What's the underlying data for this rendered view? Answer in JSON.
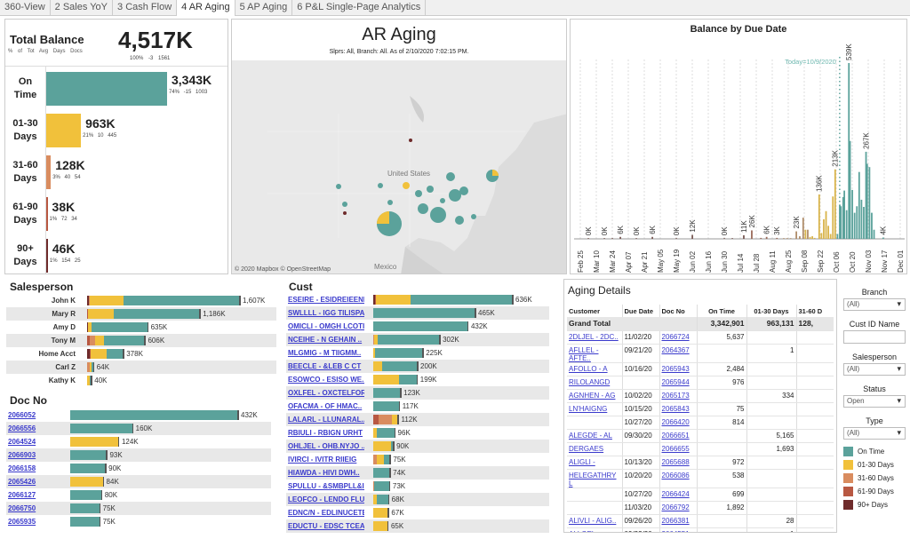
{
  "tabs": [
    "360-View",
    "2 Sales YoY",
    "3 Cash Flow",
    "4 AR Aging",
    "5 AP Aging",
    "6 P&L Single-Page Analytics"
  ],
  "active_tab": 3,
  "colors": {
    "on_time": "#5ba29b",
    "d01_30": "#f1c13b",
    "d31_60": "#d98c5f",
    "d61_90": "#b85842",
    "d90p": "#6e2b2b",
    "link": "#3a3acc"
  },
  "kpi": {
    "title": "Total Balance",
    "sub": "% of Tot Avg Days Docs",
    "total": "4,517K",
    "total_stats": "100% -3 1561",
    "rows": [
      {
        "label1": "On",
        "label2": "Time",
        "value": 3343,
        "value_label": "3,343K",
        "stats": "74% -15 1003",
        "color": "#5ba29b"
      },
      {
        "label1": "01-30",
        "label2": "Days",
        "value": 963,
        "value_label": "963K",
        "stats": "21% 10 445",
        "color": "#f1c13b"
      },
      {
        "label1": "31-60",
        "label2": "Days",
        "value": 128,
        "value_label": "128K",
        "stats": "3% 40 54",
        "color": "#d98c5f"
      },
      {
        "label1": "61-90",
        "label2": "Days",
        "value": 38,
        "value_label": "38K",
        "stats": "1% 72 34",
        "color": "#b85842"
      },
      {
        "label1": "90+",
        "label2": "Days",
        "value": 46,
        "value_label": "46K",
        "stats": "1% 154 25",
        "color": "#6e2b2b"
      }
    ]
  },
  "map": {
    "title": "AR Aging",
    "subtitle": "Slprs: All, Branch: All. As of  2/10/2020 7:02:15 PM.",
    "label_us": "United States",
    "label_mx": "Mexico",
    "attribution": "© 2020 Mapbox © OpenStreetMap"
  },
  "chart_data": {
    "type": "bar",
    "title": "Balance by Due Date",
    "annotation": "Today=10/9/2020",
    "today_day": 227,
    "x_start": "Feb 25",
    "ylim": [
      0,
      560
    ],
    "unit": "K",
    "tick_labels": [
      "Feb 25",
      "Mar 10",
      "Mar 24",
      "Apr 07",
      "Apr 21",
      "May 05",
      "May 19",
      "Jun 02",
      "Jun 16",
      "Jun 30",
      "Jul 14",
      "Jul 28",
      "Aug 11",
      "Aug 25",
      "Sep 08",
      "Sep 22",
      "Oct 06",
      "Oct 20",
      "Nov 03",
      "Nov 17",
      "Dec 01"
    ],
    "tick_step_days": 14,
    "bars": [
      {
        "day": 7,
        "value": 0.3,
        "label": "0K",
        "cat": "d90p"
      },
      {
        "day": 21,
        "value": 0.3,
        "label": "0K",
        "cat": "d90p"
      },
      {
        "day": 28,
        "value": 1,
        "cat": "d90p"
      },
      {
        "day": 35,
        "value": 6,
        "label": "6K",
        "cat": "d90p"
      },
      {
        "day": 49,
        "value": 0.3,
        "label": "0K",
        "cat": "d90p"
      },
      {
        "day": 63,
        "value": 6,
        "label": "6K",
        "cat": "d90p"
      },
      {
        "day": 84,
        "value": 0.3,
        "label": "0K",
        "cat": "d90p"
      },
      {
        "day": 98,
        "value": 12,
        "label": "12K",
        "cat": "d90p"
      },
      {
        "day": 126,
        "value": 0.3,
        "label": "0K",
        "cat": "d90p"
      },
      {
        "day": 133,
        "value": 2,
        "cat": "d90p"
      },
      {
        "day": 143,
        "value": 11,
        "label": "11K",
        "cat": "d90p"
      },
      {
        "day": 150,
        "value": 26,
        "label": "26K",
        "cat": "d90"
      },
      {
        "day": 158,
        "value": 3,
        "cat": "d90"
      },
      {
        "day": 163,
        "value": 6,
        "label": "6K",
        "cat": "d90"
      },
      {
        "day": 172,
        "value": 3,
        "label": "3K",
        "cat": "d90"
      },
      {
        "day": 178,
        "value": 1,
        "cat": "d60"
      },
      {
        "day": 181,
        "value": 1,
        "cat": "d60"
      },
      {
        "day": 184,
        "value": 1,
        "cat": "d60"
      },
      {
        "day": 189,
        "value": 23,
        "label": "23K",
        "cat": "d60"
      },
      {
        "day": 192,
        "value": 8,
        "cat": "d60"
      },
      {
        "day": 195,
        "value": 65,
        "cat": "d60"
      },
      {
        "day": 197,
        "value": 28,
        "cat": "d30"
      },
      {
        "day": 199,
        "value": 28,
        "cat": "d60"
      },
      {
        "day": 201,
        "value": 6,
        "cat": "d30"
      },
      {
        "day": 203,
        "value": 8,
        "cat": "d30"
      },
      {
        "day": 205,
        "value": 3,
        "cat": "d30"
      },
      {
        "day": 209,
        "value": 136,
        "label": "136K",
        "cat": "d30"
      },
      {
        "day": 211,
        "value": 18,
        "cat": "d30"
      },
      {
        "day": 213,
        "value": 60,
        "cat": "d30"
      },
      {
        "day": 215,
        "value": 85,
        "cat": "d30"
      },
      {
        "day": 217,
        "value": 40,
        "cat": "d30"
      },
      {
        "day": 219,
        "value": 15,
        "cat": "d30"
      },
      {
        "day": 221,
        "value": 130,
        "cat": "d30"
      },
      {
        "day": 223,
        "value": 213,
        "label": "213K",
        "cat": "d30"
      },
      {
        "day": 225,
        "value": 15,
        "cat": "on_time"
      },
      {
        "day": 227,
        "value": 105,
        "cat": "on_time"
      },
      {
        "day": 228,
        "value": 100,
        "cat": "on_time"
      },
      {
        "day": 230,
        "value": 128,
        "cat": "on_time"
      },
      {
        "day": 231,
        "value": 148,
        "cat": "on_time"
      },
      {
        "day": 233,
        "value": 88,
        "cat": "on_time"
      },
      {
        "day": 235,
        "value": 539,
        "label": "539K",
        "cat": "on_time"
      },
      {
        "day": 236,
        "value": 300,
        "cat": "on_time"
      },
      {
        "day": 238,
        "value": 150,
        "cat": "on_time"
      },
      {
        "day": 240,
        "value": 80,
        "cat": "on_time"
      },
      {
        "day": 242,
        "value": 100,
        "cat": "on_time"
      },
      {
        "day": 244,
        "value": 205,
        "cat": "on_time"
      },
      {
        "day": 246,
        "value": 120,
        "cat": "on_time"
      },
      {
        "day": 248,
        "value": 98,
        "cat": "on_time"
      },
      {
        "day": 250,
        "value": 267,
        "label": "267K",
        "cat": "on_time"
      },
      {
        "day": 251,
        "value": 230,
        "cat": "on_time"
      },
      {
        "day": 253,
        "value": 220,
        "cat": "on_time"
      },
      {
        "day": 255,
        "value": 80,
        "cat": "on_time"
      },
      {
        "day": 257,
        "value": 28,
        "cat": "on_time"
      },
      {
        "day": 265,
        "value": 4,
        "label": "4K",
        "cat": "on_time"
      }
    ]
  },
  "salesperson": {
    "title": "Salesperson",
    "max": 1607,
    "rows": [
      {
        "name": "John K",
        "label": "1,607K",
        "segs": [
          20,
          0,
          5,
          360,
          1222
        ]
      },
      {
        "name": "Mary R",
        "label": "1,186K",
        "segs": [
          0,
          5,
          5,
          270,
          906
        ]
      },
      {
        "name": "Amy D",
        "label": "635K",
        "segs": [
          5,
          0,
          0,
          40,
          590
        ]
      },
      {
        "name": "Tony M",
        "label": "606K",
        "segs": [
          0,
          30,
          50,
          100,
          426
        ]
      },
      {
        "name": "Home Acct",
        "label": "378K",
        "segs": [
          25,
          8,
          0,
          170,
          175
        ]
      },
      {
        "name": "Carl Z",
        "label": "64K",
        "segs": [
          0,
          0,
          25,
          25,
          14
        ]
      },
      {
        "name": "Kathy K",
        "label": "40K",
        "segs": [
          0,
          0,
          0,
          25,
          15
        ]
      }
    ]
  },
  "docno": {
    "title": "Doc No",
    "max": 432,
    "rows": [
      {
        "name": "2066052",
        "label": "432K",
        "segs": [
          0,
          0,
          0,
          0,
          432
        ]
      },
      {
        "name": "2066556",
        "label": "160K",
        "segs": [
          0,
          0,
          0,
          0,
          160
        ]
      },
      {
        "name": "2064524",
        "label": "124K",
        "segs": [
          0,
          0,
          0,
          124,
          0
        ]
      },
      {
        "name": "2066903",
        "label": "93K",
        "segs": [
          0,
          0,
          0,
          0,
          93
        ]
      },
      {
        "name": "2066158",
        "label": "90K",
        "segs": [
          0,
          0,
          0,
          0,
          90
        ]
      },
      {
        "name": "2065426",
        "label": "84K",
        "segs": [
          0,
          0,
          0,
          84,
          0
        ]
      },
      {
        "name": "2066127",
        "label": "80K",
        "segs": [
          0,
          0,
          0,
          0,
          80
        ]
      },
      {
        "name": "2066750",
        "label": "75K",
        "segs": [
          0,
          0,
          0,
          0,
          75
        ]
      },
      {
        "name": "2065935",
        "label": "75K",
        "segs": [
          0,
          0,
          0,
          0,
          75
        ]
      }
    ]
  },
  "cust": {
    "title": "Cust",
    "max": 636,
    "rows": [
      {
        "name": "ESEIRE - ESIDREIEENL",
        "label": "636K",
        "segs": [
          8,
          4,
          0,
          160,
          464
        ]
      },
      {
        "name": "SWLLLL - IGG TILISPAL",
        "label": "465K",
        "segs": [
          0,
          0,
          0,
          0,
          465
        ]
      },
      {
        "name": "OMICLI - OMGH LCOTI",
        "label": "432K",
        "segs": [
          0,
          0,
          0,
          0,
          432
        ]
      },
      {
        "name": "NCEIHE - N GEHAIN ..",
        "label": "302K",
        "segs": [
          0,
          0,
          5,
          17,
          280
        ]
      },
      {
        "name": "MLGMIG - M TIIGMM..",
        "label": "225K",
        "segs": [
          0,
          0,
          0,
          10,
          215
        ]
      },
      {
        "name": "BEECLE - &LEB C CT",
        "label": "200K",
        "segs": [
          0,
          0,
          0,
          40,
          160
        ]
      },
      {
        "name": "ESOWCO - ESISO WE..",
        "label": "199K",
        "segs": [
          0,
          0,
          0,
          120,
          79
        ]
      },
      {
        "name": "OXLFEL - OXCTELFORI",
        "label": "123K",
        "segs": [
          0,
          0,
          0,
          0,
          123
        ]
      },
      {
        "name": "OFACMA - OF HMAC..",
        "label": "117K",
        "segs": [
          0,
          0,
          0,
          0,
          117
        ]
      },
      {
        "name": "LALARL - LLUNARAL..",
        "label": "112K",
        "segs": [
          0,
          25,
          60,
          27,
          0
        ]
      },
      {
        "name": "RBIULI - RBIGN URHT",
        "label": "96K",
        "segs": [
          0,
          0,
          0,
          15,
          81
        ]
      },
      {
        "name": "OHLJEL - OHB.NYJO ..",
        "label": "90K",
        "segs": [
          0,
          0,
          0,
          82,
          8
        ]
      },
      {
        "name": "IVIRCI - IVITR RIIEIG",
        "label": "75K",
        "segs": [
          0,
          0,
          15,
          35,
          25
        ]
      },
      {
        "name": "HIAWDA - HIVI DWH..",
        "label": "74K",
        "segs": [
          0,
          0,
          0,
          0,
          74
        ]
      },
      {
        "name": "SPULLU - &SMBPLL&I..",
        "label": "73K",
        "segs": [
          0,
          0,
          3,
          0,
          70
        ]
      },
      {
        "name": "LEOFCO - LENDO FLU..",
        "label": "68K",
        "segs": [
          0,
          0,
          0,
          17,
          51
        ]
      },
      {
        "name": "EDNC/N - EDLINUCETE",
        "label": "67K",
        "segs": [
          0,
          0,
          0,
          67,
          0
        ]
      },
      {
        "name": "EDUCTU - EDSC TCEA..",
        "label": "65K",
        "segs": [
          0,
          0,
          0,
          65,
          0
        ]
      }
    ]
  },
  "aging": {
    "title": "Aging Details",
    "columns": [
      "Customer",
      "Due Date",
      "Doc No",
      "On Time",
      "01-30 Days",
      "31-60 D"
    ],
    "grand_total": {
      "label": "Grand Total",
      "on_time": "3,342,901",
      "d30": "963,131",
      "d60": "128,"
    },
    "rows": [
      {
        "cust": "2DLJEL - 2DC..",
        "due": "11/02/20",
        "doc": "2066724",
        "on_time": "5,637",
        "d30": ""
      },
      {
        "cust": "AFLLEL - AFTE..",
        "due": "09/21/20",
        "doc": "2064367",
        "on_time": "",
        "d30": "1"
      },
      {
        "cust": "AFOLLO - A",
        "due": "10/16/20",
        "doc": "2065943",
        "on_time": "2,484",
        "d30": ""
      },
      {
        "cust": "RILOLANGD",
        "due": "",
        "doc": "2065944",
        "on_time": "976",
        "d30": ""
      },
      {
        "cust": "AGNHEN - AG",
        "due": "10/02/20",
        "doc": "2065173",
        "on_time": "",
        "d30": "334"
      },
      {
        "cust": "LN'HAIGNG",
        "due": "10/15/20",
        "doc": "2065843",
        "on_time": "75",
        "d30": ""
      },
      {
        "cust": "",
        "due": "10/27/20",
        "doc": "2066420",
        "on_time": "814",
        "d30": ""
      },
      {
        "cust": "ALEGDE - AL",
        "due": "09/30/20",
        "doc": "2066651",
        "on_time": "",
        "d30": "5,165"
      },
      {
        "cust": "DERGAES",
        "due": "",
        "doc": "2066655",
        "on_time": "",
        "d30": "1,693"
      },
      {
        "cust": "ALIGLI -",
        "due": "10/13/20",
        "doc": "2065688",
        "on_time": "972",
        "d30": ""
      },
      {
        "cust": "HELEGATHRY L",
        "due": "10/20/20",
        "doc": "2066086",
        "on_time": "538",
        "d30": ""
      },
      {
        "cust": "",
        "due": "10/27/20",
        "doc": "2066424",
        "on_time": "699",
        "d30": ""
      },
      {
        "cust": "",
        "due": "11/03/20",
        "doc": "2066792",
        "on_time": "1,892",
        "d30": ""
      },
      {
        "cust": "ALIVLI - ALIG..",
        "due": "09/26/20",
        "doc": "2066381",
        "on_time": "",
        "d30": "28"
      },
      {
        "cust": "ALLGEL -",
        "due": "09/22/20",
        "doc": "2064551",
        "on_time": "",
        "d30": "1"
      }
    ]
  },
  "filters": {
    "branch": {
      "label": "Branch",
      "value": "(All)"
    },
    "cust_id": {
      "label": "Cust ID Name",
      "value": ""
    },
    "salesperson": {
      "label": "Salesperson",
      "value": "(All)"
    },
    "status": {
      "label": "Status",
      "value": "Open"
    },
    "type": {
      "label": "Type",
      "value": "(All)"
    }
  },
  "legend": [
    {
      "label": "On Time",
      "color": "#5ba29b"
    },
    {
      "label": "01-30 Days",
      "color": "#f1c13b"
    },
    {
      "label": "31-60 Days",
      "color": "#d98c5f"
    },
    {
      "label": "61-90 Days",
      "color": "#b85842"
    },
    {
      "label": "90+ Days",
      "color": "#6e2b2b"
    }
  ]
}
